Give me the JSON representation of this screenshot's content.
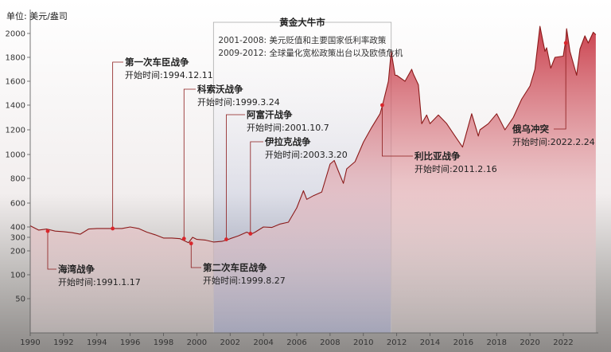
{
  "chart_data": {
    "type": "line",
    "unit_label": "单位: 美元/盎司",
    "x_ticks": [
      "1990",
      "1992",
      "1994",
      "1996",
      "1998",
      "2000",
      "2002",
      "2004",
      "2006",
      "2008",
      "2010",
      "2012",
      "2014",
      "2016",
      "2018",
      "2020",
      "2022"
    ],
    "y_ticks": [
      "50",
      "100",
      "200",
      "300",
      "400",
      "600",
      "800",
      "1000",
      "1200",
      "1400",
      "1600",
      "1800",
      "2000"
    ],
    "series": [
      {
        "name": "",
        "color": "#8b1a1a",
        "points": [
          [
            1990.0,
            410
          ],
          [
            1990.5,
            370
          ],
          [
            1991.0,
            380
          ],
          [
            1991.5,
            360
          ],
          [
            1992.0,
            355
          ],
          [
            1992.5,
            345
          ],
          [
            1993.0,
            330
          ],
          [
            1993.5,
            380
          ],
          [
            1994.0,
            385
          ],
          [
            1994.5,
            385
          ],
          [
            1995.0,
            385
          ],
          [
            1995.5,
            385
          ],
          [
            1996.0,
            400
          ],
          [
            1996.5,
            385
          ],
          [
            1997.0,
            350
          ],
          [
            1997.5,
            325
          ],
          [
            1998.0,
            295
          ],
          [
            1998.5,
            295
          ],
          [
            1999.0,
            290
          ],
          [
            1999.5,
            260
          ],
          [
            1999.75,
            300
          ],
          [
            2000.0,
            285
          ],
          [
            2000.5,
            280
          ],
          [
            2001.0,
            265
          ],
          [
            2001.5,
            270
          ],
          [
            2001.8,
            280
          ],
          [
            2002.0,
            290
          ],
          [
            2002.5,
            315
          ],
          [
            2003.0,
            350
          ],
          [
            2003.25,
            330
          ],
          [
            2003.5,
            350
          ],
          [
            2004.0,
            400
          ],
          [
            2004.5,
            395
          ],
          [
            2005.0,
            425
          ],
          [
            2005.5,
            440
          ],
          [
            2006.0,
            560
          ],
          [
            2006.4,
            700
          ],
          [
            2006.6,
            630
          ],
          [
            2007.0,
            660
          ],
          [
            2007.5,
            690
          ],
          [
            2008.0,
            920
          ],
          [
            2008.25,
            950
          ],
          [
            2008.5,
            860
          ],
          [
            2008.8,
            760
          ],
          [
            2009.0,
            880
          ],
          [
            2009.5,
            940
          ],
          [
            2010.0,
            1100
          ],
          [
            2010.5,
            1220
          ],
          [
            2011.0,
            1330
          ],
          [
            2011.15,
            1400
          ],
          [
            2011.5,
            1600
          ],
          [
            2011.67,
            1850
          ],
          [
            2011.9,
            1650
          ],
          [
            2012.0,
            1650
          ],
          [
            2012.5,
            1600
          ],
          [
            2012.9,
            1700
          ],
          [
            2013.0,
            1660
          ],
          [
            2013.3,
            1570
          ],
          [
            2013.5,
            1250
          ],
          [
            2013.8,
            1320
          ],
          [
            2014.0,
            1250
          ],
          [
            2014.5,
            1320
          ],
          [
            2015.0,
            1250
          ],
          [
            2015.5,
            1150
          ],
          [
            2015.95,
            1060
          ],
          [
            2016.5,
            1330
          ],
          [
            2016.9,
            1150
          ],
          [
            2017.0,
            1200
          ],
          [
            2017.5,
            1250
          ],
          [
            2018.0,
            1330
          ],
          [
            2018.5,
            1200
          ],
          [
            2019.0,
            1300
          ],
          [
            2019.5,
            1450
          ],
          [
            2020.0,
            1560
          ],
          [
            2020.3,
            1700
          ],
          [
            2020.6,
            2060
          ],
          [
            2020.9,
            1850
          ],
          [
            2021.0,
            1880
          ],
          [
            2021.25,
            1710
          ],
          [
            2021.5,
            1800
          ],
          [
            2022.0,
            1810
          ],
          [
            2022.15,
            1950
          ],
          [
            2022.2,
            2040
          ],
          [
            2022.4,
            1850
          ],
          [
            2022.6,
            1750
          ],
          [
            2022.8,
            1650
          ],
          [
            2023.0,
            1870
          ],
          [
            2023.3,
            1980
          ],
          [
            2023.5,
            1920
          ],
          [
            2023.8,
            2010
          ],
          [
            2023.95,
            1990
          ]
        ]
      }
    ],
    "events": [
      {
        "title": "海湾战争",
        "subtitle": "开始时间:1991.1.17",
        "x": 1991.05,
        "y": 360
      },
      {
        "title": "第一次车臣战争",
        "subtitle": "开始时间:1994.12.11",
        "x": 1994.95,
        "y": 385
      },
      {
        "title": "科索沃战争",
        "subtitle": "开始时间:1999.3.24",
        "x": 1999.23,
        "y": 290
      },
      {
        "title": "第二次车臣战争",
        "subtitle": "开始时间:1999.8.27",
        "x": 1999.66,
        "y": 255
      },
      {
        "title": "阿富汗战争",
        "subtitle": "开始时间:2001.10.7",
        "x": 2001.77,
        "y": 285
      },
      {
        "title": "伊拉克战争",
        "subtitle": "开始时间:2003.3.20",
        "x": 2003.22,
        "y": 335
      },
      {
        "title": "利比亚战争",
        "subtitle": "开始时间:2011.2.16",
        "x": 2011.13,
        "y": 1400
      },
      {
        "title": "俄乌冲突",
        "subtitle": "开始时间:2022.2.24",
        "x": 2022.15,
        "y": 1920
      }
    ],
    "highlight": {
      "title": "黄金大牛市",
      "range": [
        2001,
        2011.67
      ],
      "lines": [
        "2001-2008: 美元贬值和主要国家低利率政策",
        "2009-2012: 全球量化宽松政策出台以及欧债危机"
      ]
    }
  }
}
